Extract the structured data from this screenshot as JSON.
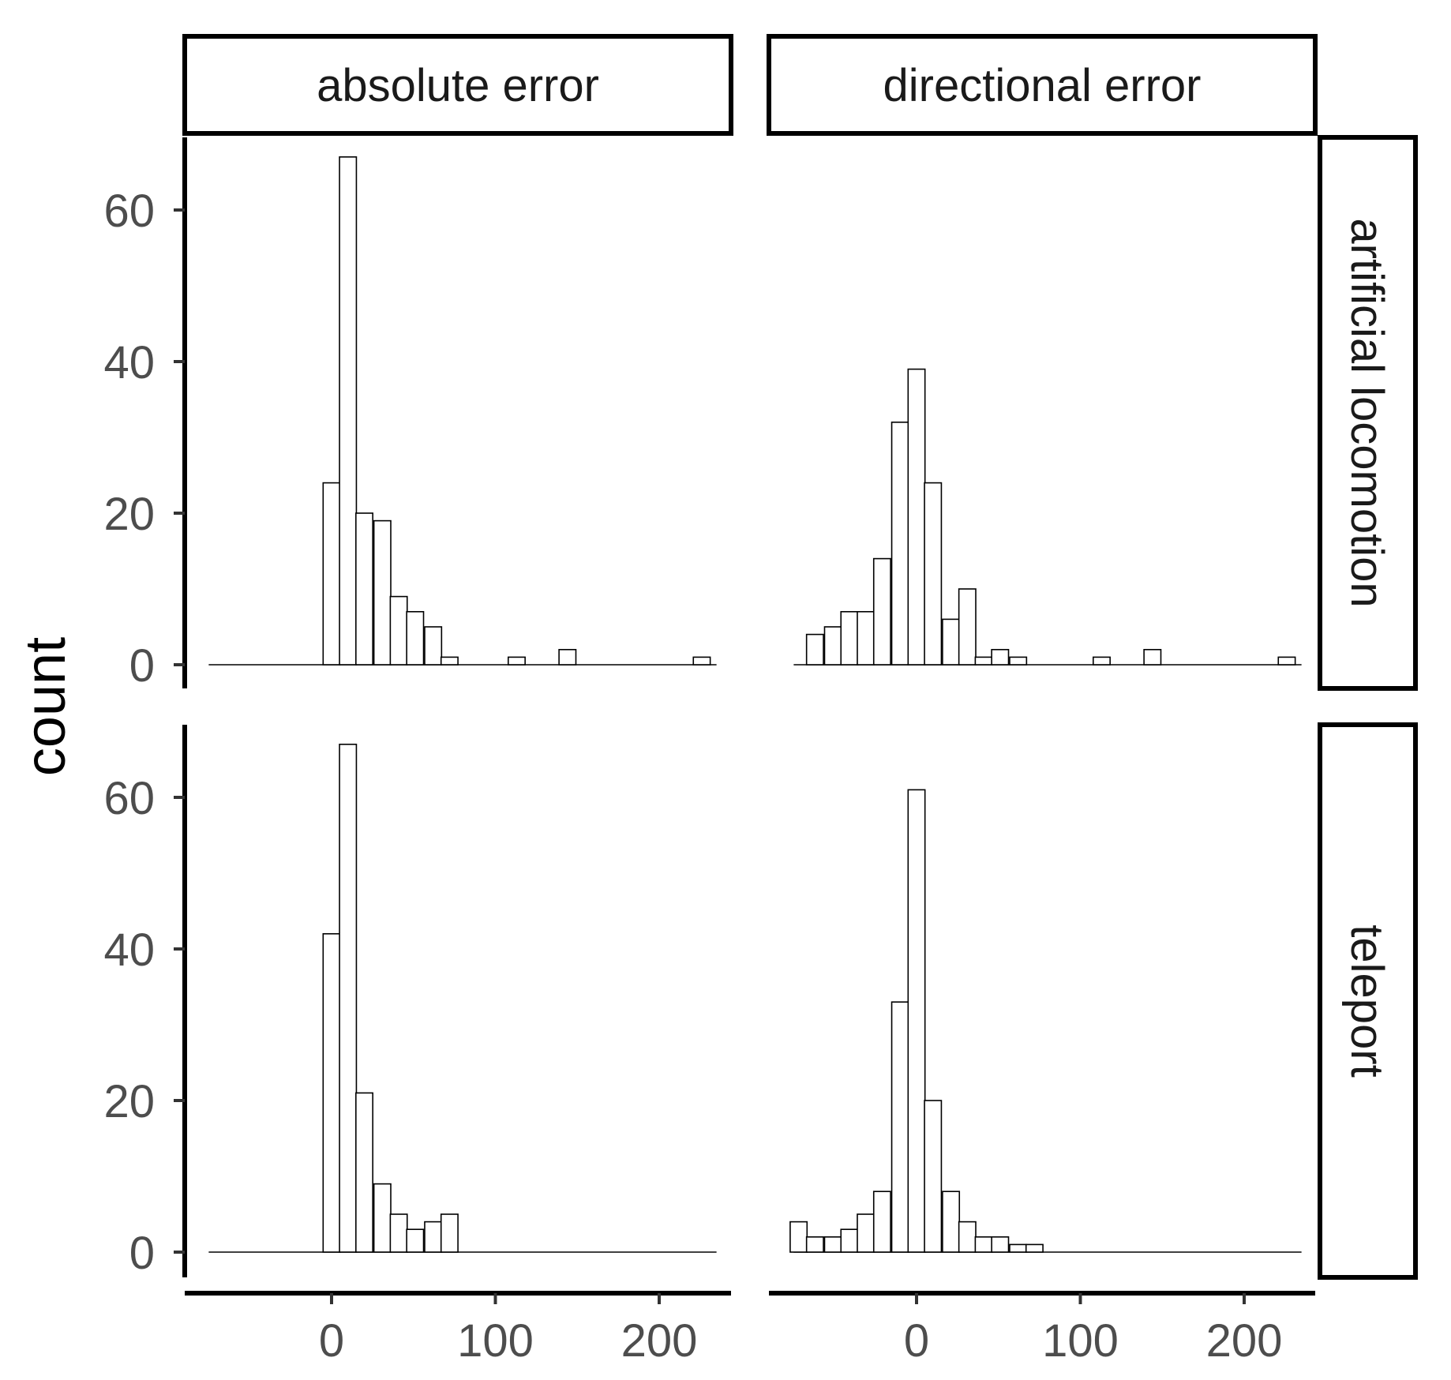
{
  "chart_data": {
    "type": "bar",
    "subtype": "faceted-histogram",
    "ylabel": "count",
    "xlabel": "",
    "ylim": [
      0,
      70
    ],
    "xlim": [
      -75,
      235
    ],
    "x_ticks": [
      0,
      100,
      200
    ],
    "y_ticks": [
      0,
      20,
      40,
      60
    ],
    "bin_width": 10.3,
    "columns": [
      "absolute error",
      "directional error"
    ],
    "rows": [
      "artificial locomotion",
      "teleport"
    ],
    "panels": [
      {
        "row": "artificial locomotion",
        "column": "absolute error",
        "x": [
          0,
          10,
          20,
          31,
          41,
          51,
          62,
          72,
          82,
          93,
          103,
          113,
          123,
          134,
          144,
          154,
          165,
          175,
          185,
          195,
          206,
          216,
          226
        ],
        "counts": [
          24,
          67,
          20,
          19,
          9,
          7,
          5,
          1,
          0,
          0,
          0,
          1,
          0,
          0,
          2,
          0,
          0,
          0,
          0,
          0,
          0,
          0,
          1
        ]
      },
      {
        "row": "artificial locomotion",
        "column": "directional error",
        "x": [
          -62,
          -51,
          -41,
          -31,
          -21,
          -10,
          0,
          10,
          21,
          31,
          41,
          51,
          62,
          72,
          82,
          93,
          103,
          113,
          123,
          134,
          144,
          154,
          165,
          175,
          185,
          195,
          206,
          216,
          226
        ],
        "counts": [
          4,
          5,
          7,
          7,
          14,
          32,
          39,
          24,
          6,
          10,
          1,
          2,
          1,
          0,
          0,
          0,
          0,
          1,
          0,
          0,
          2,
          0,
          0,
          0,
          0,
          0,
          0,
          0,
          1
        ]
      },
      {
        "row": "teleport",
        "column": "absolute error",
        "x": [
          0,
          10,
          20,
          31,
          41,
          51,
          62,
          72
        ],
        "counts": [
          42,
          67,
          21,
          9,
          5,
          3,
          4,
          5
        ]
      },
      {
        "row": "teleport",
        "column": "directional error",
        "x": [
          -72,
          -62,
          -51,
          -41,
          -31,
          -21,
          -10,
          0,
          10,
          21,
          31,
          41,
          51,
          62,
          72
        ],
        "counts": [
          4,
          2,
          2,
          3,
          5,
          8,
          33,
          61,
          20,
          8,
          4,
          2,
          2,
          1,
          1
        ]
      }
    ],
    "grid": false,
    "legend": "none",
    "bar_fill": "#ffffff",
    "bar_stroke": "#000000"
  }
}
